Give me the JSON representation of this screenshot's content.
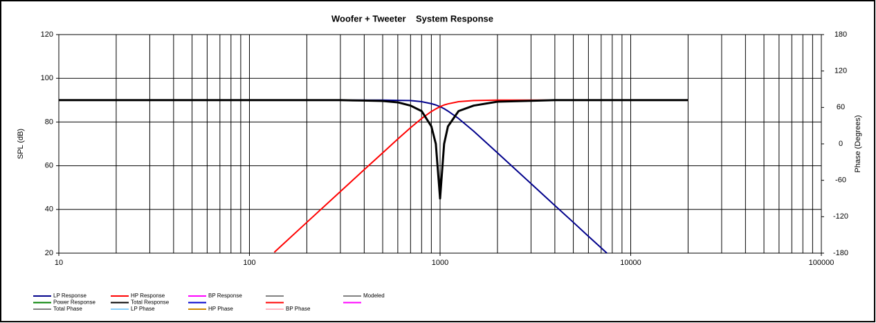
{
  "chart_data": {
    "type": "line",
    "title": "Woofer + Tweeter    System Response",
    "ylabel": "SPL (dB)",
    "y2label": "Phase (Degrees)",
    "xscale": "log",
    "xlim": [
      10,
      100000
    ],
    "xticks": [
      10,
      100,
      1000,
      10000,
      100000
    ],
    "xminorticks": [
      20,
      30,
      40,
      50,
      60,
      70,
      80,
      90,
      200,
      300,
      400,
      500,
      600,
      700,
      800,
      900,
      2000,
      3000,
      4000,
      5000,
      6000,
      7000,
      8000,
      9000,
      20000,
      30000,
      40000,
      50000,
      60000,
      70000,
      80000,
      90000
    ],
    "ylim": [
      20,
      120
    ],
    "yticks": [
      20,
      40,
      60,
      80,
      100,
      120
    ],
    "y2lim": [
      -180,
      180
    ],
    "y2ticks": [
      -180,
      -120,
      -60,
      0,
      60,
      120,
      180
    ],
    "grid": true,
    "x": [
      10,
      20,
      50,
      100,
      135,
      200,
      300,
      400,
      500,
      600,
      700,
      800,
      900,
      950,
      1000,
      1050,
      1100,
      1250,
      1500,
      2000,
      3000,
      4000,
      5000,
      6000,
      7000,
      7500,
      10000,
      20000
    ],
    "series": [
      {
        "name": "LP Response",
        "color": "#00008b",
        "width": 2,
        "values": [
          90,
          90,
          90,
          90,
          90,
          90,
          90,
          90,
          90,
          89.9,
          89.8,
          89.3,
          88.4,
          87.8,
          87,
          86.1,
          85,
          81.6,
          75.8,
          65.9,
          51.8,
          41.8,
          34.1,
          27.7,
          22.4,
          20,
          null,
          null
        ]
      },
      {
        "name": "HP Response",
        "color": "#ff0000",
        "width": 2,
        "values": [
          null,
          null,
          null,
          null,
          20.4,
          34.1,
          48.2,
          58.2,
          65.9,
          72.2,
          77.4,
          81.6,
          84.8,
          86,
          87,
          87.8,
          88.3,
          89.3,
          89.8,
          90,
          90,
          90,
          90,
          90,
          90,
          90,
          90,
          90
        ]
      },
      {
        "name": "BP Response",
        "color": "#ff00ff"
      },
      {
        "color": "#808080"
      },
      {
        "name": "Modeled",
        "color": "#808080"
      },
      {
        "name": "Power Response",
        "color": "#008000"
      },
      {
        "name": "Total Response",
        "color": "#000000",
        "width": 3,
        "values": [
          90,
          90,
          90,
          90,
          90,
          90,
          90,
          89.8,
          89.6,
          89,
          87.5,
          85,
          78,
          70,
          45,
          70,
          78,
          85,
          87.5,
          89.3,
          89.7,
          90,
          90,
          90,
          90,
          90,
          90,
          90
        ]
      },
      {
        "color": "#0000cc"
      },
      {
        "color": "#ff0000"
      },
      {
        "color": "#ff00ff"
      },
      {
        "name": "Total Phase",
        "color": "#808080"
      },
      {
        "name": "LP Phase",
        "color": "#87cefa"
      },
      {
        "name": "HP Phase",
        "color": "#cc8800"
      },
      {
        "name": "BP Phase",
        "color": "#ffb6c1"
      }
    ]
  }
}
